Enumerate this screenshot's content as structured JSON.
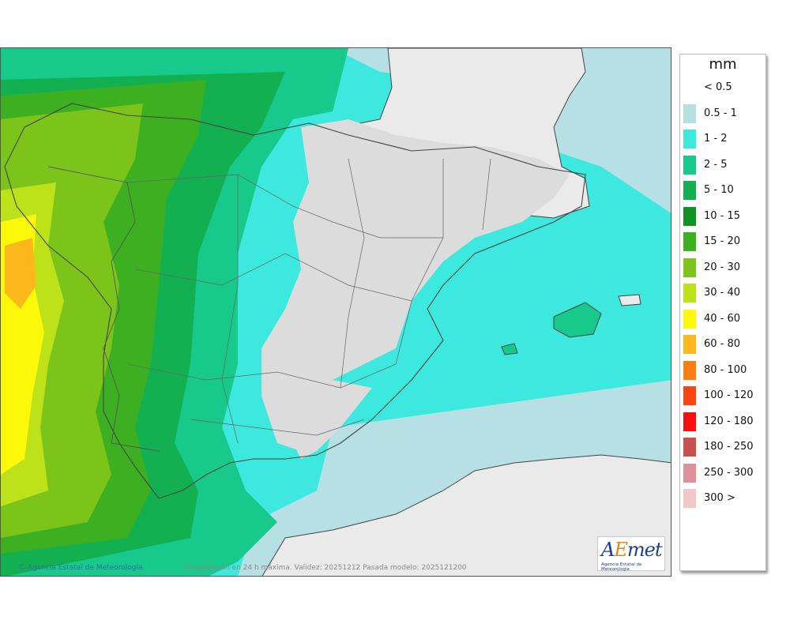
{
  "legend": {
    "title": "mm",
    "items": [
      {
        "label": "< 0.5",
        "color": "#ffffff"
      },
      {
        "label": "0.5 - 1",
        "color": "#b6e0e4"
      },
      {
        "label": "1 - 2",
        "color": "#3de8de"
      },
      {
        "label": "2 - 5",
        "color": "#17c98a"
      },
      {
        "label": "5 - 10",
        "color": "#12b050"
      },
      {
        "label": "10 - 15",
        "color": "#0e9324"
      },
      {
        "label": "15 - 20",
        "color": "#3cb020"
      },
      {
        "label": "20 - 30",
        "color": "#7dc41a"
      },
      {
        "label": "30 - 40",
        "color": "#bde21a"
      },
      {
        "label": "40 - 60",
        "color": "#fcf80a"
      },
      {
        "label": "60 - 80",
        "color": "#fcb81a"
      },
      {
        "label": "80 - 100",
        "color": "#fc7e12"
      },
      {
        "label": "100 - 120",
        "color": "#fc4412"
      },
      {
        "label": "120 - 180",
        "color": "#f80e0e"
      },
      {
        "label": "180 - 250",
        "color": "#c85050"
      },
      {
        "label": "250 - 300",
        "color": "#e0909a"
      },
      {
        "label": "300 >",
        "color": "#f0c8c8"
      }
    ]
  },
  "footer": {
    "copyright": "Agencia Estatal de Meteorología",
    "caption": "Precipitación en 24 h máxima. Validez: 20251212 Pasada modelo: 2025121200"
  },
  "logo": {
    "text_a": "A",
    "text_e": "E",
    "text_met": "met",
    "subtitle": "Agencia Estatal de Meteorología"
  }
}
